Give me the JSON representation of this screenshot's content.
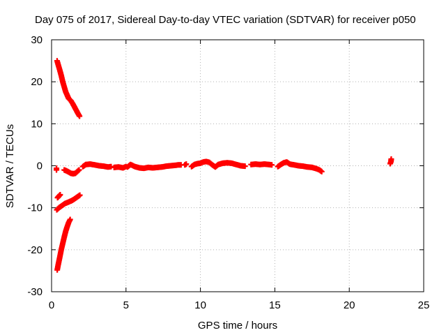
{
  "chart_data": {
    "type": "scatter",
    "title": "Day 075 of 2017, Sidereal Day-to-day VTEC variation (SDTVAR) for receiver p050",
    "xlabel": "GPS time / hours",
    "ylabel": "SDTVAR / TECUs",
    "xlim": [
      0,
      25
    ],
    "ylim": [
      -30,
      30
    ],
    "xticks": [
      0,
      5,
      10,
      15,
      20,
      25
    ],
    "yticks": [
      -30,
      -20,
      -10,
      0,
      10,
      20,
      30
    ],
    "grid": true,
    "marker": "plus",
    "color": "#ff0000",
    "series": [
      {
        "segments": [
          [
            [
              0.33,
              -1.0
            ],
            [
              0.33,
              -0.6
            ]
          ],
          [
            [
              0.37,
              25.0
            ],
            [
              0.45,
              24.0
            ],
            [
              0.55,
              22.8
            ],
            [
              0.65,
              21.5
            ],
            [
              0.75,
              20.0
            ],
            [
              0.85,
              18.8
            ],
            [
              0.95,
              17.6
            ],
            [
              1.05,
              16.8
            ],
            [
              1.15,
              16.0
            ],
            [
              1.3,
              15.5
            ],
            [
              1.45,
              14.6
            ],
            [
              1.6,
              13.6
            ],
            [
              1.75,
              12.6
            ],
            [
              1.88,
              11.8
            ]
          ],
          [
            [
              0.38,
              -24.8
            ],
            [
              0.45,
              -23.5
            ],
            [
              0.55,
              -21.8
            ],
            [
              0.65,
              -20.0
            ],
            [
              0.75,
              -18.5
            ],
            [
              0.85,
              -17.0
            ],
            [
              0.95,
              -15.6
            ],
            [
              1.05,
              -14.5
            ],
            [
              1.15,
              -13.5
            ],
            [
              1.25,
              -12.8
            ]
          ],
          [
            [
              0.35,
              -10.5
            ],
            [
              0.5,
              -10.0
            ],
            [
              0.7,
              -9.5
            ],
            [
              0.9,
              -9.0
            ],
            [
              1.1,
              -8.7
            ],
            [
              1.3,
              -8.4
            ],
            [
              1.5,
              -8.0
            ],
            [
              1.7,
              -7.5
            ],
            [
              1.9,
              -7.0
            ]
          ],
          [
            [
              0.4,
              -7.6
            ],
            [
              0.5,
              -7.2
            ],
            [
              0.58,
              -6.9
            ]
          ],
          [
            [
              0.85,
              -1.0
            ],
            [
              1.0,
              -1.2
            ],
            [
              1.15,
              -1.5
            ],
            [
              1.3,
              -1.8
            ],
            [
              1.45,
              -1.9
            ],
            [
              1.6,
              -1.8
            ],
            [
              1.75,
              -1.3
            ],
            [
              1.85,
              -1.0
            ]
          ],
          [
            [
              2.1,
              -0.2
            ],
            [
              2.3,
              0.3
            ],
            [
              2.6,
              0.4
            ],
            [
              2.9,
              0.2
            ],
            [
              3.2,
              0.0
            ],
            [
              3.5,
              -0.1
            ],
            [
              3.8,
              -0.3
            ],
            [
              4.0,
              -0.2
            ]
          ],
          [
            [
              4.2,
              -0.4
            ],
            [
              4.5,
              -0.3
            ],
            [
              4.8,
              -0.5
            ],
            [
              5.0,
              -0.2
            ]
          ],
          [
            [
              5.1,
              -0.3
            ],
            [
              5.3,
              0.3
            ],
            [
              5.6,
              -0.2
            ],
            [
              5.9,
              -0.5
            ],
            [
              6.2,
              -0.6
            ],
            [
              6.5,
              -0.4
            ],
            [
              6.8,
              -0.5
            ],
            [
              7.1,
              -0.4
            ],
            [
              7.4,
              -0.3
            ],
            [
              7.7,
              -0.1
            ],
            [
              8.0,
              0.0
            ],
            [
              8.3,
              0.1
            ],
            [
              8.5,
              0.2
            ],
            [
              8.7,
              0.2
            ]
          ],
          [
            [
              8.95,
              0.2
            ],
            [
              9.05,
              0.4
            ]
          ],
          [
            [
              9.4,
              -0.2
            ],
            [
              9.6,
              0.3
            ],
            [
              9.8,
              0.5
            ],
            [
              10.0,
              0.6
            ],
            [
              10.2,
              0.9
            ],
            [
              10.4,
              1.0
            ],
            [
              10.6,
              0.8
            ],
            [
              10.8,
              0.2
            ],
            [
              11.0,
              -0.3
            ],
            [
              11.2,
              0.3
            ],
            [
              11.5,
              0.6
            ],
            [
              11.8,
              0.7
            ],
            [
              12.1,
              0.6
            ],
            [
              12.4,
              0.3
            ],
            [
              12.7,
              0.0
            ],
            [
              13.0,
              -0.1
            ]
          ],
          [
            [
              13.4,
              0.3
            ],
            [
              13.7,
              0.4
            ],
            [
              14.0,
              0.3
            ],
            [
              14.3,
              0.4
            ],
            [
              14.6,
              0.3
            ],
            [
              14.8,
              0.2
            ]
          ],
          [
            [
              15.2,
              -0.2
            ],
            [
              15.4,
              0.3
            ],
            [
              15.6,
              0.7
            ],
            [
              15.8,
              0.9
            ],
            [
              16.0,
              0.4
            ],
            [
              16.3,
              0.2
            ],
            [
              16.6,
              0.0
            ],
            [
              16.9,
              -0.1
            ],
            [
              17.2,
              -0.3
            ],
            [
              17.5,
              -0.4
            ],
            [
              17.8,
              -0.7
            ],
            [
              18.0,
              -1.0
            ],
            [
              18.15,
              -1.4
            ]
          ],
          [
            [
              22.75,
              0.5
            ],
            [
              22.8,
              1.0
            ],
            [
              22.82,
              1.6
            ]
          ]
        ]
      }
    ]
  }
}
